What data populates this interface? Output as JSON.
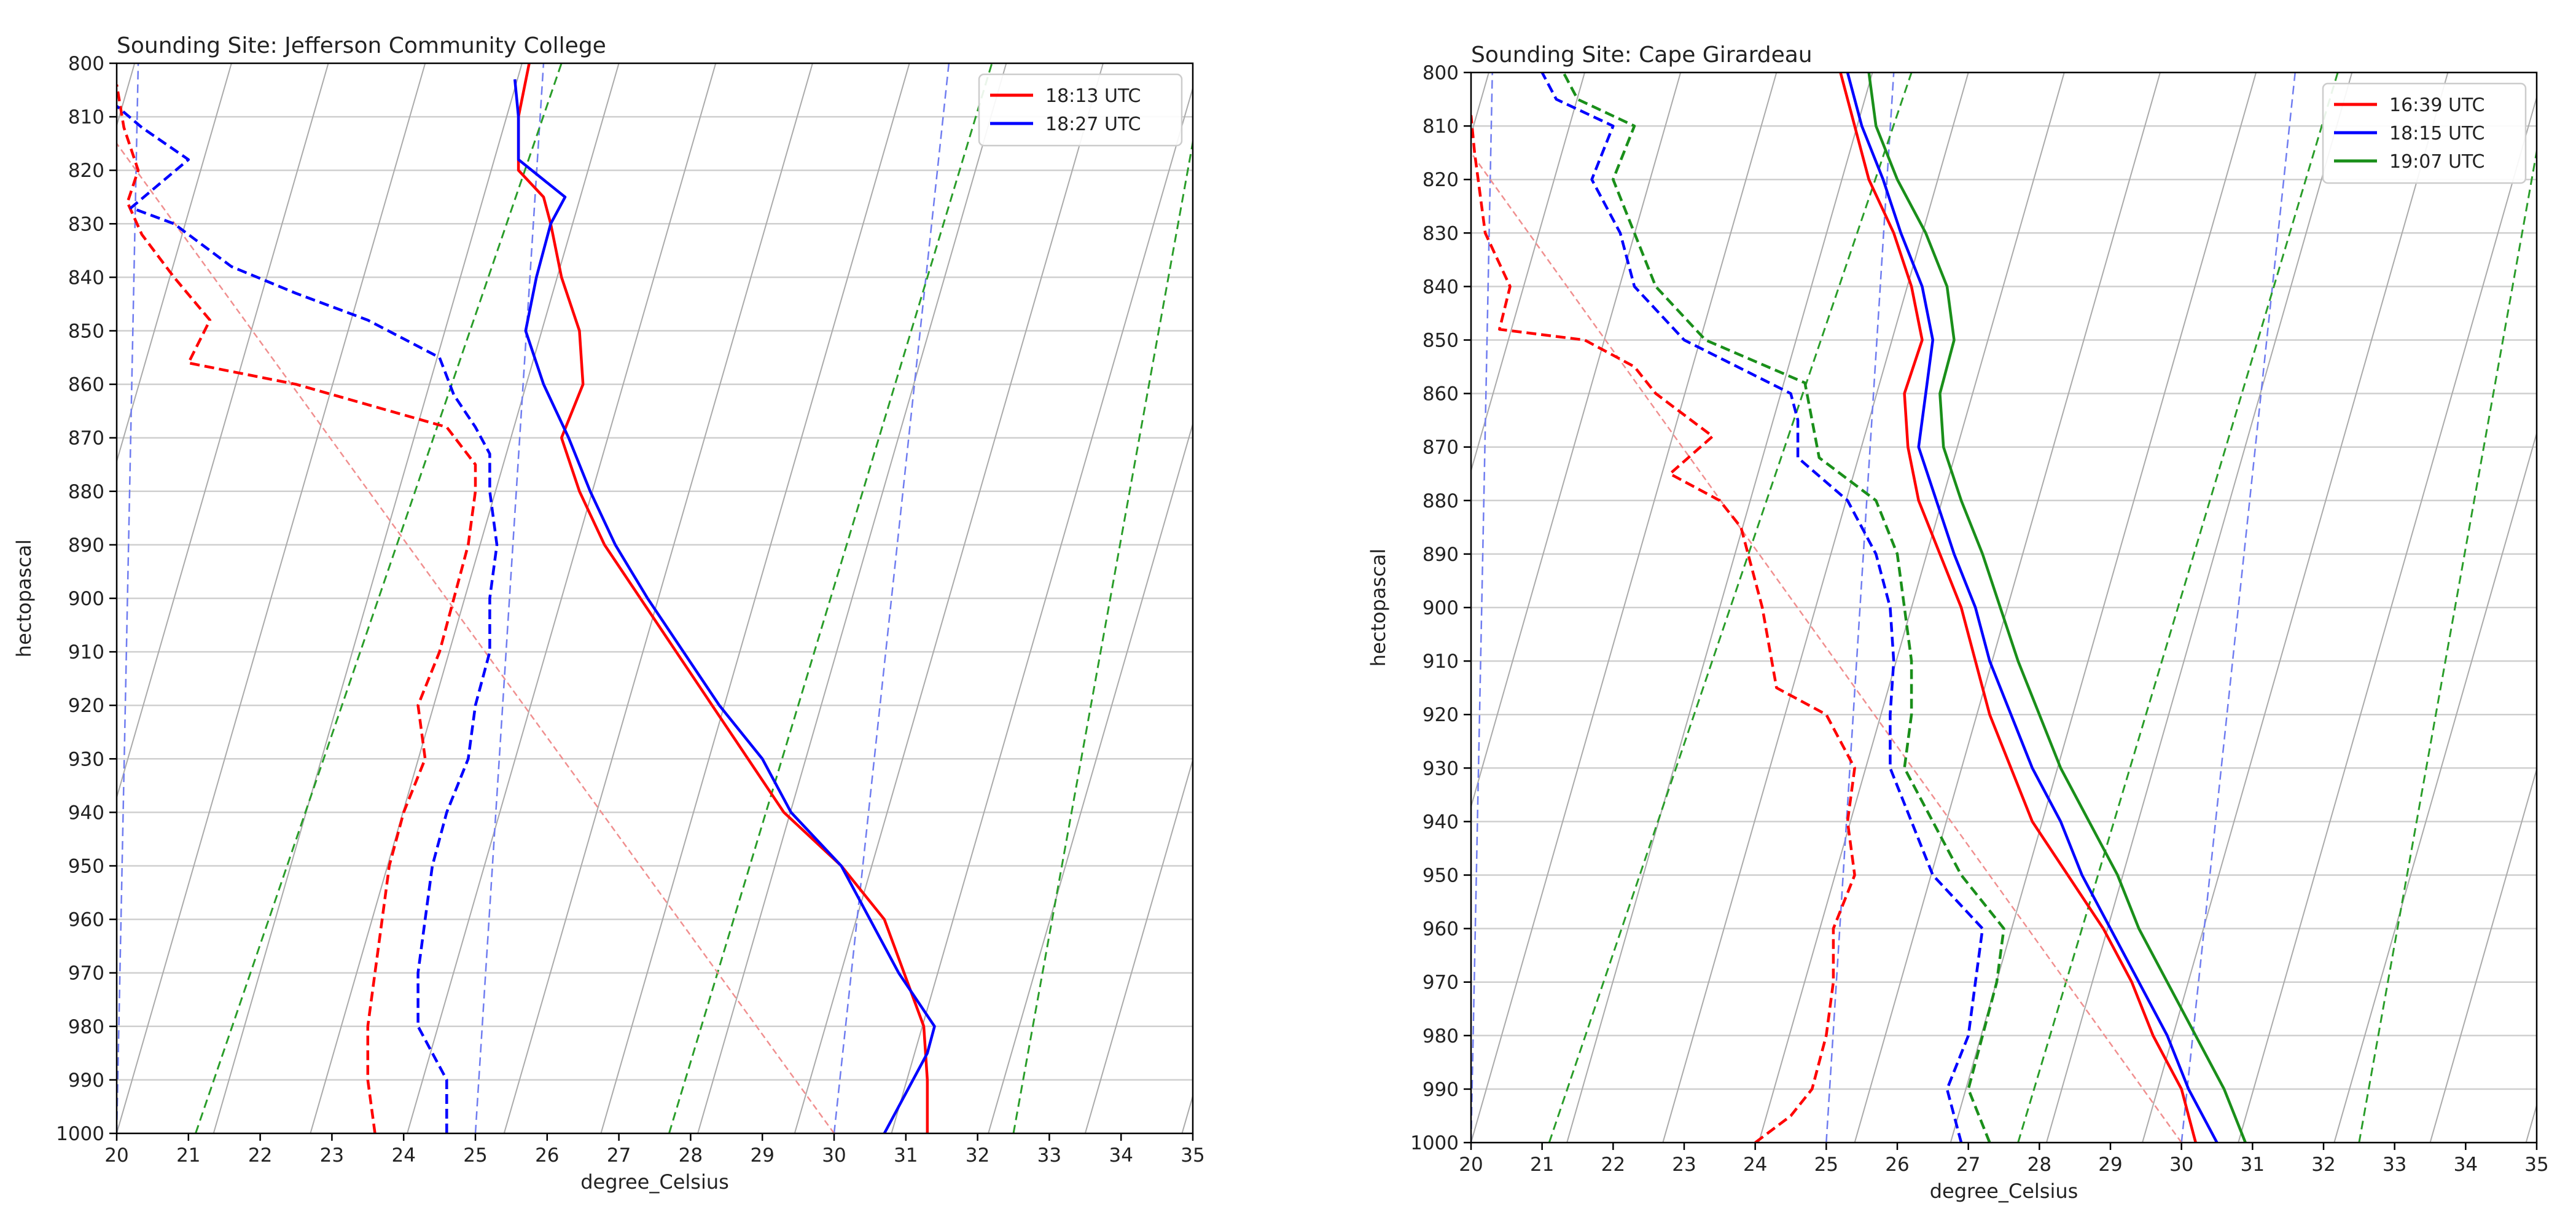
{
  "chart_data": [
    {
      "type": "line",
      "title": "Sounding Site: Jefferson Community College",
      "xlabel": "degree_Celsius",
      "ylabel": "hectopascal",
      "xlim": [
        20,
        35
      ],
      "ylim": [
        1000,
        800
      ],
      "xticks": [
        20,
        21,
        22,
        23,
        24,
        25,
        26,
        27,
        28,
        29,
        30,
        31,
        32,
        33,
        34,
        35
      ],
      "yticks": [
        800,
        810,
        820,
        830,
        840,
        850,
        860,
        870,
        880,
        890,
        900,
        910,
        920,
        930,
        940,
        950,
        960,
        970,
        980,
        990,
        1000
      ],
      "grid": true,
      "legend_position": "top-right",
      "colors": {
        "dry_adiabat": "#aaaaaa",
        "moist_adiabat": "#2a9d2a",
        "mixing_ratio": "#6f7cf0",
        "parcel": "#f08f8f"
      },
      "reference_lines": {
        "mixing_ratio": [
          [
            20.0,
            20.3
          ],
          [
            25.0,
            25.95
          ],
          [
            30.0,
            31.6
          ]
        ],
        "moist_adiabat": [
          [
            21.1,
            26.2
          ],
          [
            27.7,
            32.2
          ],
          [
            32.5,
            35.2
          ]
        ],
        "parcel": [
          [
            30.0,
            20.0
          ]
        ]
      },
      "series": [
        {
          "name": "18:13 UTC",
          "color": "#ff0000",
          "temperature": [
            [
              31.3,
              1000
            ],
            [
              31.3,
              990
            ],
            [
              31.25,
              980
            ],
            [
              30.7,
              960
            ],
            [
              30.1,
              950
            ],
            [
              29.3,
              940
            ],
            [
              28.8,
              930
            ],
            [
              28.3,
              920
            ],
            [
              27.8,
              910
            ],
            [
              27.3,
              900
            ],
            [
              26.8,
              890
            ],
            [
              26.45,
              880
            ],
            [
              26.2,
              870
            ],
            [
              26.5,
              860
            ],
            [
              26.45,
              850
            ],
            [
              26.2,
              840
            ],
            [
              26.05,
              830
            ],
            [
              25.95,
              825
            ],
            [
              25.6,
              820
            ],
            [
              25.6,
              810
            ],
            [
              25.75,
              800
            ]
          ],
          "dewpoint": [
            [
              23.6,
              1000
            ],
            [
              23.5,
              990
            ],
            [
              23.5,
              980
            ],
            [
              23.6,
              970
            ],
            [
              23.7,
              960
            ],
            [
              23.8,
              950
            ],
            [
              24.0,
              940
            ],
            [
              24.3,
              930
            ],
            [
              24.2,
              920
            ],
            [
              24.5,
              910
            ],
            [
              24.7,
              900
            ],
            [
              24.9,
              890
            ],
            [
              25.0,
              880
            ],
            [
              25.0,
              875
            ],
            [
              24.6,
              868
            ],
            [
              22.5,
              860
            ],
            [
              21.0,
              856
            ],
            [
              21.3,
              848
            ],
            [
              20.8,
              840
            ],
            [
              20.35,
              832
            ],
            [
              20.15,
              826
            ],
            [
              20.3,
              820
            ],
            [
              20.1,
              812
            ],
            [
              20.0,
              804
            ]
          ]
        },
        {
          "name": "18:27 UTC",
          "color": "#0000ff",
          "temperature": [
            [
              30.7,
              1000
            ],
            [
              30.9,
              995
            ],
            [
              31.3,
              985
            ],
            [
              31.4,
              980
            ],
            [
              30.9,
              970
            ],
            [
              30.5,
              960
            ],
            [
              30.1,
              950
            ],
            [
              29.4,
              940
            ],
            [
              29.0,
              930
            ],
            [
              28.4,
              920
            ],
            [
              27.9,
              910
            ],
            [
              27.4,
              900
            ],
            [
              26.95,
              890
            ],
            [
              26.6,
              880
            ],
            [
              26.3,
              870
            ],
            [
              25.95,
              860
            ],
            [
              25.7,
              850
            ],
            [
              25.85,
              840
            ],
            [
              26.05,
              830
            ],
            [
              26.25,
              825
            ],
            [
              25.6,
              818
            ],
            [
              25.6,
              810
            ],
            [
              25.55,
              803
            ]
          ],
          "dewpoint": [
            [
              24.6,
              1000
            ],
            [
              24.6,
              990
            ],
            [
              24.2,
              980
            ],
            [
              24.2,
              970
            ],
            [
              24.3,
              960
            ],
            [
              24.4,
              950
            ],
            [
              24.6,
              940
            ],
            [
              24.9,
              930
            ],
            [
              25.0,
              920
            ],
            [
              25.2,
              910
            ],
            [
              25.2,
              900
            ],
            [
              25.3,
              890
            ],
            [
              25.2,
              880
            ],
            [
              25.2,
              873
            ],
            [
              25.0,
              868
            ],
            [
              24.7,
              862
            ],
            [
              24.5,
              855
            ],
            [
              23.5,
              848
            ],
            [
              22.5,
              843
            ],
            [
              21.6,
              838
            ],
            [
              20.8,
              830
            ],
            [
              20.2,
              827
            ],
            [
              21.0,
              818
            ],
            [
              20.35,
              812
            ],
            [
              20.0,
              808
            ]
          ]
        }
      ]
    },
    {
      "type": "line",
      "title": "Sounding Site: Cape Girardeau",
      "xlabel": "degree_Celsius",
      "ylabel": "hectopascal",
      "xlim": [
        20,
        35
      ],
      "ylim": [
        1000,
        800
      ],
      "xticks": [
        20,
        21,
        22,
        23,
        24,
        25,
        26,
        27,
        28,
        29,
        30,
        31,
        32,
        33,
        34,
        35
      ],
      "yticks": [
        800,
        810,
        820,
        830,
        840,
        850,
        860,
        870,
        880,
        890,
        900,
        910,
        920,
        930,
        940,
        950,
        960,
        970,
        980,
        990,
        1000
      ],
      "grid": true,
      "legend_position": "top-right",
      "colors": {
        "dry_adiabat": "#aaaaaa",
        "moist_adiabat": "#2a9d2a",
        "mixing_ratio": "#6f7cf0",
        "parcel": "#f08f8f"
      },
      "reference_lines": {
        "mixing_ratio": [
          [
            20.0,
            20.3
          ],
          [
            25.0,
            25.95
          ],
          [
            30.0,
            31.6
          ]
        ],
        "moist_adiabat": [
          [
            21.1,
            26.2
          ],
          [
            27.7,
            32.2
          ],
          [
            32.5,
            35.2
          ]
        ],
        "parcel": [
          [
            30.0,
            20.0
          ]
        ]
      },
      "series": [
        {
          "name": "16:39 UTC",
          "color": "#ff0000",
          "temperature": [
            [
              30.2,
              1000
            ],
            [
              30.0,
              990
            ],
            [
              29.6,
              980
            ],
            [
              29.3,
              970
            ],
            [
              28.9,
              960
            ],
            [
              28.4,
              950
            ],
            [
              27.9,
              940
            ],
            [
              27.6,
              930
            ],
            [
              27.3,
              920
            ],
            [
              27.1,
              910
            ],
            [
              26.9,
              900
            ],
            [
              26.6,
              890
            ],
            [
              26.3,
              880
            ],
            [
              26.15,
              870
            ],
            [
              26.1,
              860
            ],
            [
              26.35,
              850
            ],
            [
              26.2,
              840
            ],
            [
              25.95,
              830
            ],
            [
              25.6,
              820
            ],
            [
              25.4,
              810
            ],
            [
              25.2,
              800
            ]
          ],
          "dewpoint": [
            [
              24.0,
              1000
            ],
            [
              24.5,
              995
            ],
            [
              24.8,
              990
            ],
            [
              25.0,
              980
            ],
            [
              25.1,
              970
            ],
            [
              25.1,
              960
            ],
            [
              25.4,
              950
            ],
            [
              25.3,
              940
            ],
            [
              25.4,
              930
            ],
            [
              25.0,
              920
            ],
            [
              24.3,
              915
            ],
            [
              24.1,
              900
            ],
            [
              23.8,
              885
            ],
            [
              23.5,
              880
            ],
            [
              22.8,
              875
            ],
            [
              23.4,
              868
            ],
            [
              22.6,
              860
            ],
            [
              22.3,
              855
            ],
            [
              21.6,
              850
            ],
            [
              20.4,
              848
            ],
            [
              20.55,
              840
            ],
            [
              20.2,
              830
            ],
            [
              20.05,
              815
            ],
            [
              20.0,
              808
            ]
          ]
        },
        {
          "name": "18:15 UTC",
          "color": "#0000ff",
          "temperature": [
            [
              30.5,
              1000
            ],
            [
              30.1,
              990
            ],
            [
              29.8,
              980
            ],
            [
              29.4,
              970
            ],
            [
              29.0,
              960
            ],
            [
              28.6,
              950
            ],
            [
              28.3,
              940
            ],
            [
              27.9,
              930
            ],
            [
              27.6,
              920
            ],
            [
              27.3,
              910
            ],
            [
              27.1,
              900
            ],
            [
              26.8,
              890
            ],
            [
              26.55,
              880
            ],
            [
              26.3,
              870
            ],
            [
              26.4,
              860
            ],
            [
              26.5,
              850
            ],
            [
              26.35,
              840
            ],
            [
              26.05,
              830
            ],
            [
              25.8,
              820
            ],
            [
              25.5,
              810
            ],
            [
              25.3,
              800
            ]
          ],
          "dewpoint": [
            [
              26.9,
              1000
            ],
            [
              26.7,
              990
            ],
            [
              27.0,
              980
            ],
            [
              27.1,
              970
            ],
            [
              27.2,
              960
            ],
            [
              26.5,
              950
            ],
            [
              26.2,
              940
            ],
            [
              25.9,
              930
            ],
            [
              25.9,
              920
            ],
            [
              25.95,
              910
            ],
            [
              25.9,
              900
            ],
            [
              25.7,
              890
            ],
            [
              25.3,
              880
            ],
            [
              24.6,
              872
            ],
            [
              24.6,
              865
            ],
            [
              24.5,
              860
            ],
            [
              23.0,
              850
            ],
            [
              22.3,
              840
            ],
            [
              22.1,
              830
            ],
            [
              21.7,
              820
            ],
            [
              22.0,
              810
            ],
            [
              21.2,
              805
            ],
            [
              21.0,
              800
            ]
          ]
        },
        {
          "name": "19:07 UTC",
          "color": "#1a8f1a",
          "temperature": [
            [
              30.9,
              1000
            ],
            [
              30.6,
              990
            ],
            [
              30.2,
              980
            ],
            [
              29.8,
              970
            ],
            [
              29.4,
              960
            ],
            [
              29.1,
              950
            ],
            [
              28.7,
              940
            ],
            [
              28.3,
              930
            ],
            [
              28.0,
              920
            ],
            [
              27.7,
              910
            ],
            [
              27.45,
              900
            ],
            [
              27.2,
              890
            ],
            [
              26.9,
              880
            ],
            [
              26.65,
              870
            ],
            [
              26.6,
              860
            ],
            [
              26.8,
              850
            ],
            [
              26.7,
              840
            ],
            [
              26.4,
              830
            ],
            [
              26.0,
              820
            ],
            [
              25.7,
              810
            ],
            [
              25.6,
              800
            ]
          ],
          "dewpoint": [
            [
              27.3,
              1000
            ],
            [
              27.0,
              990
            ],
            [
              27.2,
              980
            ],
            [
              27.4,
              970
            ],
            [
              27.5,
              960
            ],
            [
              26.9,
              950
            ],
            [
              26.5,
              940
            ],
            [
              26.1,
              930
            ],
            [
              26.2,
              920
            ],
            [
              26.2,
              910
            ],
            [
              26.1,
              900
            ],
            [
              26.0,
              890
            ],
            [
              25.7,
              880
            ],
            [
              24.9,
              872
            ],
            [
              24.8,
              865
            ],
            [
              24.7,
              858
            ],
            [
              23.3,
              850
            ],
            [
              22.6,
              840
            ],
            [
              22.3,
              830
            ],
            [
              22.0,
              820
            ],
            [
              22.3,
              810
            ],
            [
              21.5,
              805
            ],
            [
              21.3,
              800
            ]
          ]
        }
      ]
    }
  ]
}
